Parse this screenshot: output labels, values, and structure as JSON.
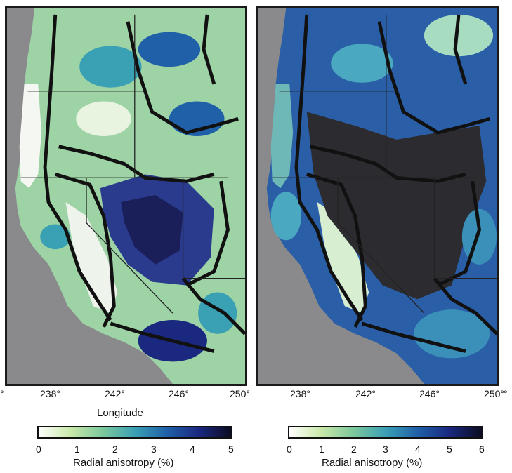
{
  "left_panel": {
    "x_ticks": [
      "238°",
      "242°",
      "246°",
      "250°"
    ],
    "x_edge_label": "°",
    "x_axis_label": "Longitude",
    "colorbar": {
      "ticks": [
        "0",
        "1",
        "2",
        "3",
        "4",
        "5"
      ],
      "label": "Radial anisotropy (%)",
      "min": 0,
      "max": 5
    }
  },
  "right_panel": {
    "x_ticks": [
      "238°",
      "242°",
      "246°",
      "250°"
    ],
    "right_edge_label": "°",
    "colorbar": {
      "ticks": [
        "0",
        "1",
        "2",
        "3",
        "4",
        "5",
        "6"
      ],
      "label": "Radial anisotropy (%)",
      "min": 0,
      "max": 6
    }
  },
  "colormap": [
    "#ffffff",
    "#c8e8a8",
    "#7cc89c",
    "#3aa0b4",
    "#2060a8",
    "#1a2880",
    "#0b0b20"
  ],
  "ocean_color": "#8a8a8c"
}
